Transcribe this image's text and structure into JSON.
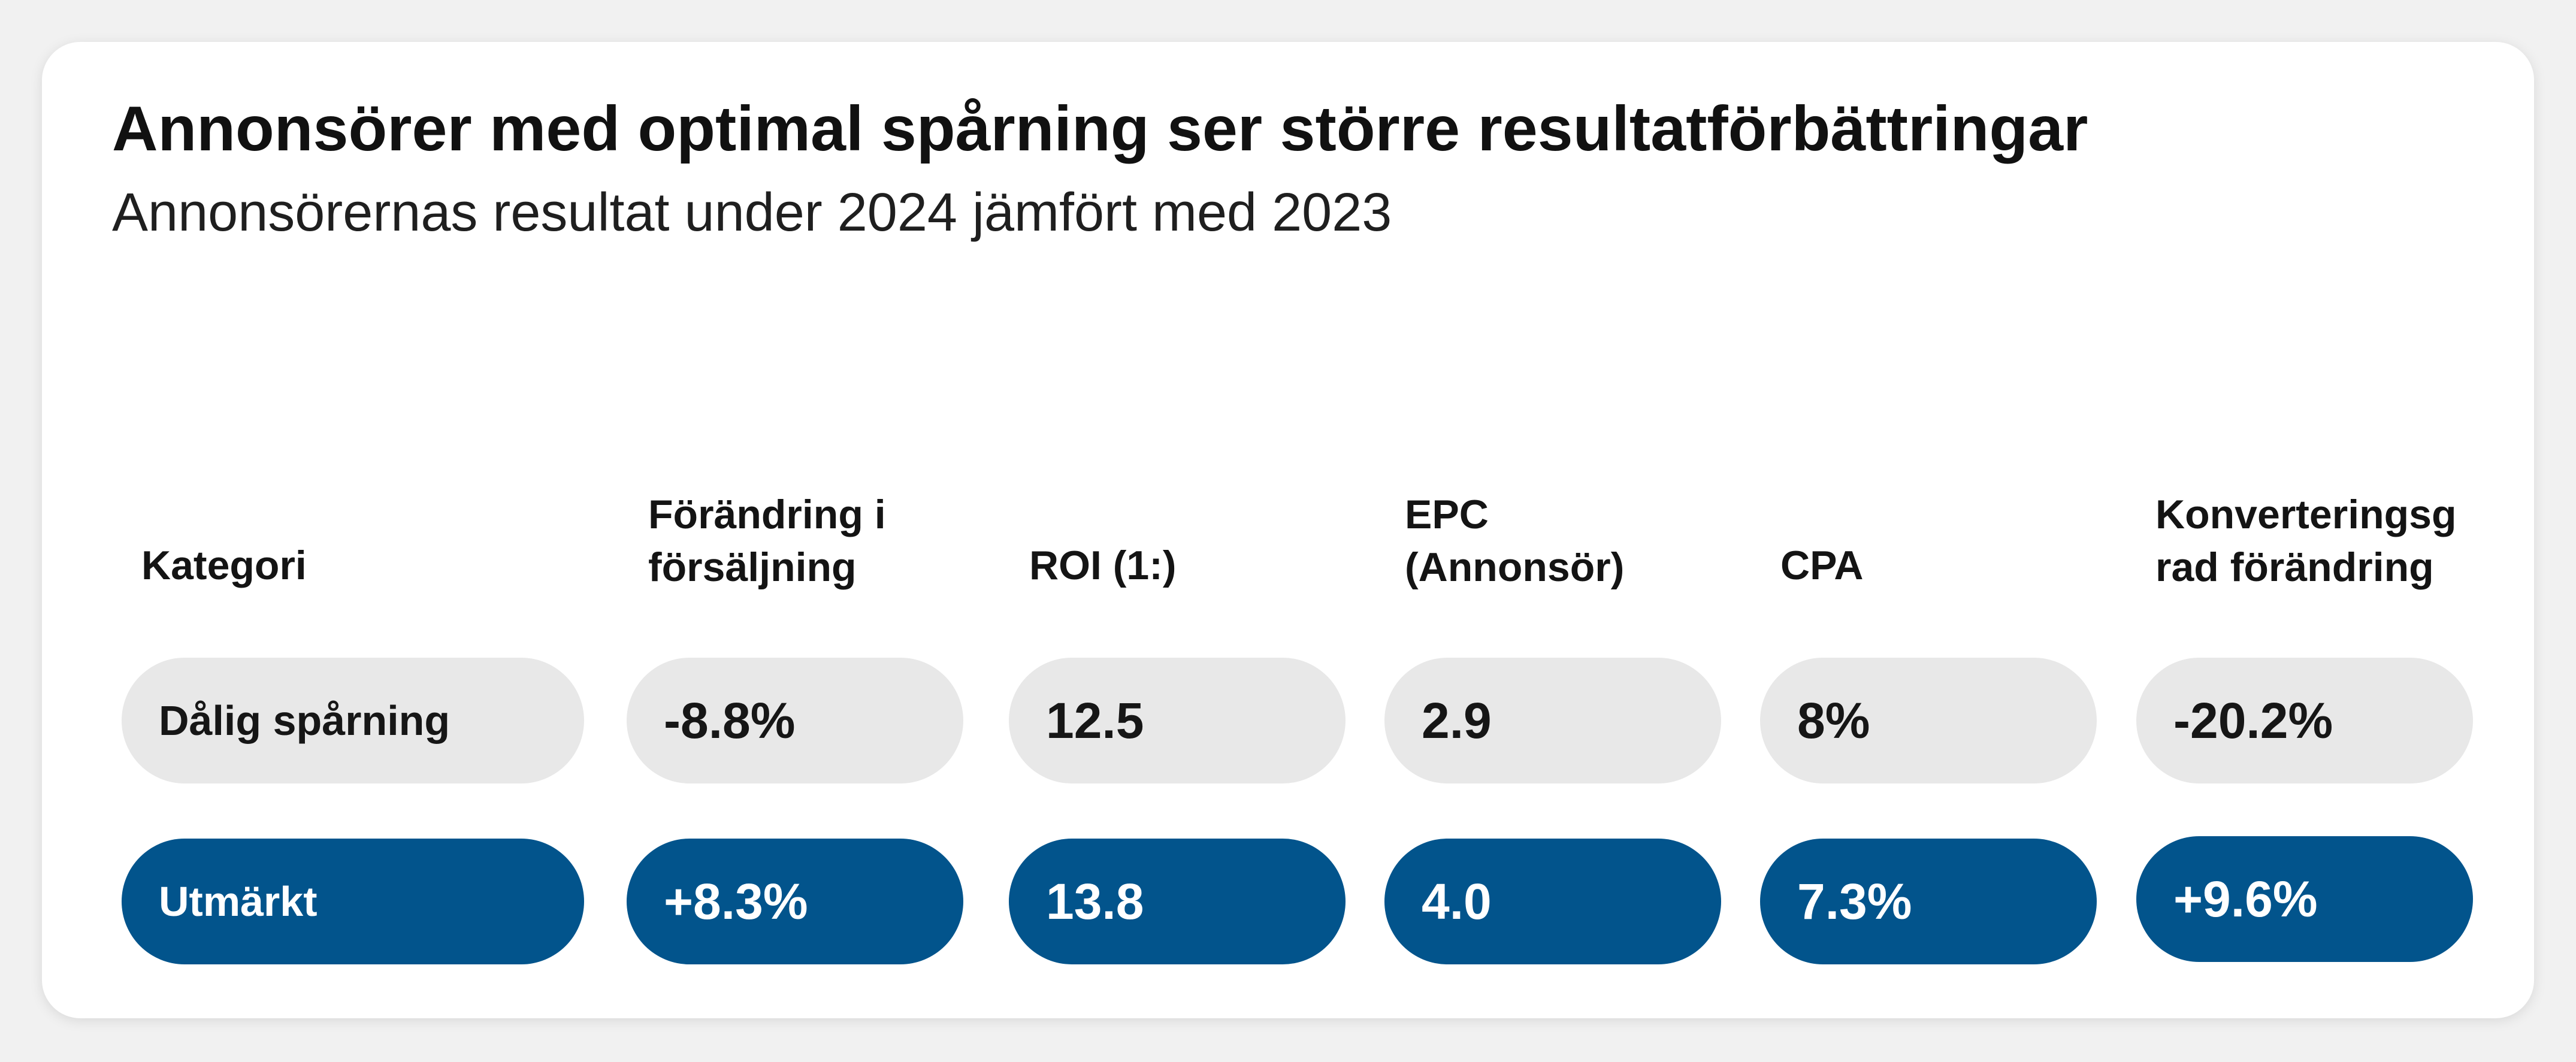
{
  "chart_data": {
    "type": "table",
    "title": "Annonsörer med optimal spårning ser större resultatförbättringar",
    "subtitle": "Annonsörernas resultat under 2024 jämfört med 2023",
    "headers": [
      "Kategori",
      "Förändring i\nförsäljning",
      "ROI (1:)",
      "EPC\n(Annonsör)",
      "CPA",
      "Konverteringsg\nrad förändring"
    ],
    "rows": [
      {
        "category": "Dålig spårning",
        "values": [
          "-8.8%",
          "12.5",
          "2.9",
          "8%",
          "-20.2%"
        ],
        "numeric": [
          -8.8,
          12.5,
          2.9,
          8,
          -20.2
        ]
      },
      {
        "category": "Utmärkt",
        "values": [
          "+8.3%",
          "13.8",
          "4.0",
          "7.3%",
          "+9.6%"
        ],
        "numeric": [
          8.3,
          13.8,
          4.0,
          7.3,
          9.6
        ]
      }
    ],
    "colors": {
      "poor_row": "#e8e8e8",
      "excellent_row": "#02548c",
      "excellent_text": "#ffffff"
    }
  }
}
